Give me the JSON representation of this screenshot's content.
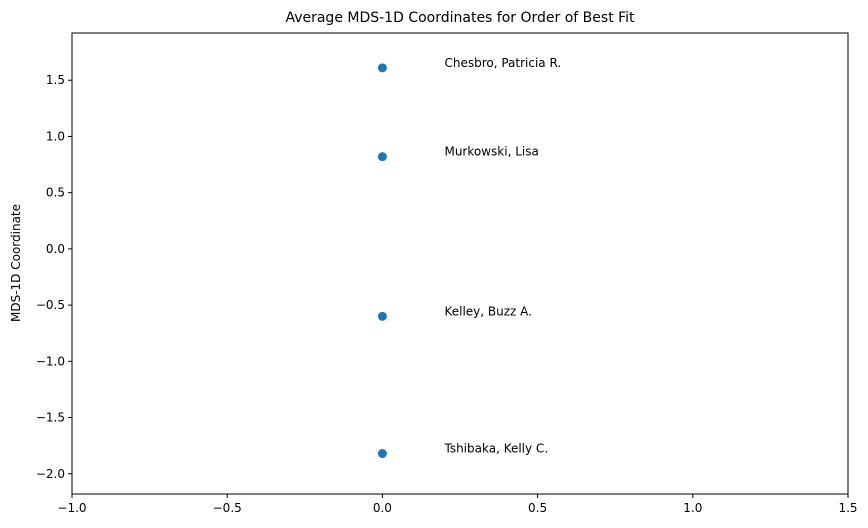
{
  "chart_data": {
    "type": "scatter",
    "title": "Average MDS-1D Coordinates for Order of Best Fit",
    "xlabel": "",
    "ylabel": "MDS-1D Coordinate",
    "xlim": [
      -1.0,
      1.5
    ],
    "ylim": [
      -2.18,
      1.92
    ],
    "xticks": [
      -1.0,
      -0.5,
      0.0,
      0.5,
      1.0,
      1.5
    ],
    "xtick_labels": [
      "−1.0",
      "−0.5",
      "0.0",
      "0.5",
      "1.0",
      "1.5"
    ],
    "yticks": [
      -2.0,
      -1.5,
      -1.0,
      -0.5,
      0.0,
      0.5,
      1.0,
      1.5
    ],
    "ytick_labels": [
      "−2.0",
      "−1.5",
      "−1.0",
      "−0.5",
      "0.0",
      "0.5",
      "1.0",
      "1.5"
    ],
    "grid": false,
    "marker_color": "#1f77b4",
    "points": [
      {
        "label": "Chesbro, Patricia R.",
        "x": 0.0,
        "y": 1.61
      },
      {
        "label": "Murkowski, Lisa",
        "x": 0.0,
        "y": 0.82
      },
      {
        "label": "Kelley, Buzz A.",
        "x": 0.0,
        "y": -0.6
      },
      {
        "label": "Tshibaka, Kelly C.",
        "x": 0.0,
        "y": -1.82
      }
    ],
    "annotation_offset_x": 0.2
  }
}
